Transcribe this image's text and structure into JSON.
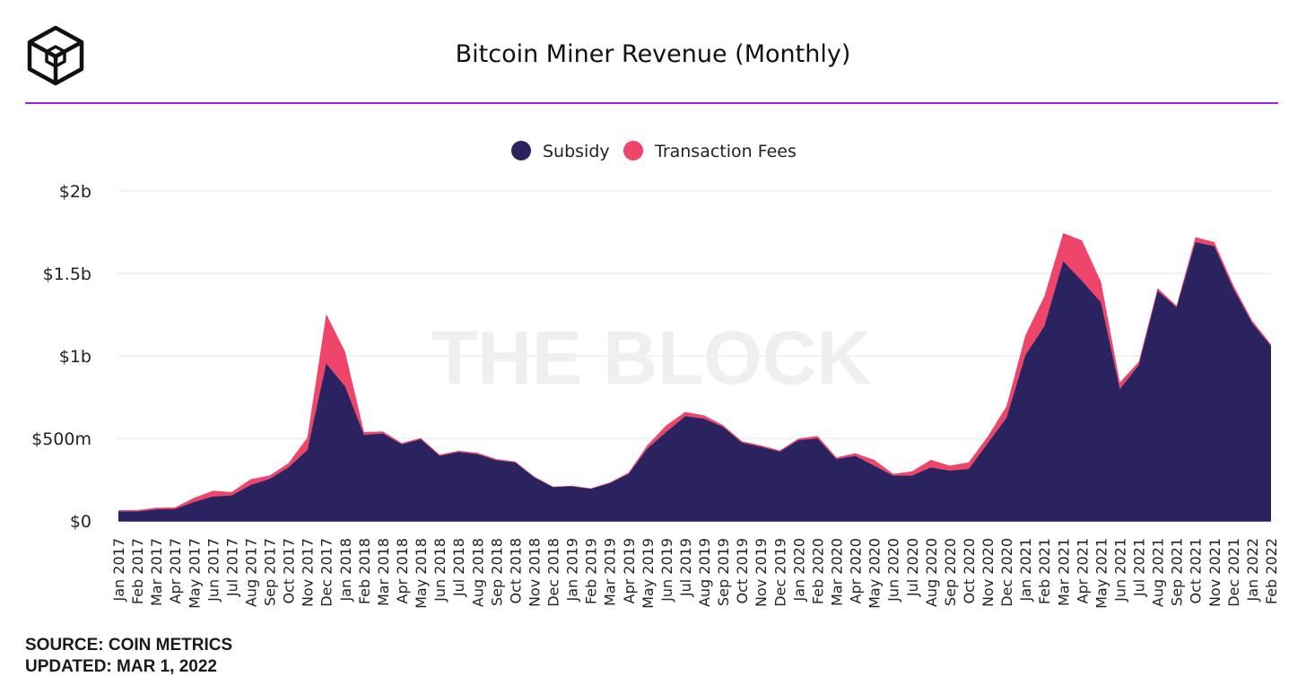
{
  "header": {
    "logo_icon": "the-block-cube-icon",
    "title": "Bitcoin Miner Revenue (Monthly)",
    "rule_color": "#a020e0"
  },
  "watermark": "THE BLOCK",
  "footer": {
    "source": "SOURCE: COIN METRICS",
    "updated": "UPDATED: MAR 1, 2022"
  },
  "chart_data": {
    "type": "area",
    "stacked": true,
    "title": "Bitcoin Miner Revenue (Monthly)",
    "xlabel": "",
    "ylabel": "",
    "ylim": [
      0,
      2000000000
    ],
    "yticks": [
      0,
      500000000,
      1000000000,
      1500000000,
      2000000000
    ],
    "ytick_labels": [
      "$0",
      "$500m",
      "$1b",
      "$1.5b",
      "$2b"
    ],
    "grid": "horizontal",
    "legend_position": "top-center",
    "categories": [
      "Jan 2017",
      "Feb 2017",
      "Mar 2017",
      "Apr 2017",
      "May 2017",
      "Jun 2017",
      "Jul 2017",
      "Aug 2017",
      "Sep 2017",
      "Oct 2017",
      "Nov 2017",
      "Dec 2017",
      "Jan 2018",
      "Feb 2018",
      "Mar 2018",
      "Apr 2018",
      "May 2018",
      "Jun 2018",
      "Jul 2018",
      "Aug 2018",
      "Sep 2018",
      "Oct 2018",
      "Nov 2018",
      "Dec 2018",
      "Jan 2019",
      "Feb 2019",
      "Mar 2019",
      "Apr 2019",
      "May 2019",
      "Jun 2019",
      "Jul 2019",
      "Aug 2019",
      "Sep 2019",
      "Oct 2019",
      "Nov 2019",
      "Dec 2019",
      "Jan 2020",
      "Feb 2020",
      "Mar 2020",
      "Apr 2020",
      "May 2020",
      "Jun 2020",
      "Jul 2020",
      "Aug 2020",
      "Sep 2020",
      "Oct 2020",
      "Nov 2020",
      "Dec 2020",
      "Jan 2021",
      "Feb 2021",
      "Mar 2021",
      "Apr 2021",
      "May 2021",
      "Jun 2021",
      "Jul 2021",
      "Aug 2021",
      "Sep 2021",
      "Oct 2021",
      "Nov 2021",
      "Dec 2021",
      "Jan 2022",
      "Feb 2022"
    ],
    "series": [
      {
        "name": "Subsidy",
        "color": "#2b2360",
        "values": [
          58000000,
          58000000,
          70000000,
          72000000,
          115000000,
          148000000,
          155000000,
          218000000,
          255000000,
          325000000,
          430000000,
          955000000,
          815000000,
          522000000,
          530000000,
          465000000,
          495000000,
          395000000,
          418000000,
          405000000,
          368000000,
          355000000,
          265000000,
          205000000,
          210000000,
          195000000,
          228000000,
          285000000,
          440000000,
          540000000,
          635000000,
          620000000,
          570000000,
          475000000,
          450000000,
          420000000,
          490000000,
          500000000,
          375000000,
          395000000,
          335000000,
          275000000,
          275000000,
          325000000,
          305000000,
          315000000,
          470000000,
          625000000,
          1005000000,
          1180000000,
          1575000000,
          1455000000,
          1325000000,
          800000000,
          945000000,
          1395000000,
          1295000000,
          1690000000,
          1665000000,
          1410000000,
          1200000000,
          1060000000
        ]
      },
      {
        "name": "Transaction Fees",
        "color": "#f0456a",
        "values": [
          7000000,
          8000000,
          10000000,
          10000000,
          25000000,
          35000000,
          20000000,
          35000000,
          20000000,
          25000000,
          75000000,
          300000000,
          210000000,
          17000000,
          12000000,
          7000000,
          8000000,
          7000000,
          7000000,
          8000000,
          7000000,
          5000000,
          5000000,
          3000000,
          3000000,
          3000000,
          5000000,
          8000000,
          20000000,
          40000000,
          25000000,
          20000000,
          10000000,
          8000000,
          8000000,
          7000000,
          10000000,
          15000000,
          10000000,
          15000000,
          35000000,
          10000000,
          25000000,
          45000000,
          30000000,
          40000000,
          40000000,
          70000000,
          120000000,
          180000000,
          170000000,
          245000000,
          125000000,
          40000000,
          20000000,
          15000000,
          10000000,
          30000000,
          25000000,
          20000000,
          15000000,
          10000000
        ]
      }
    ]
  }
}
